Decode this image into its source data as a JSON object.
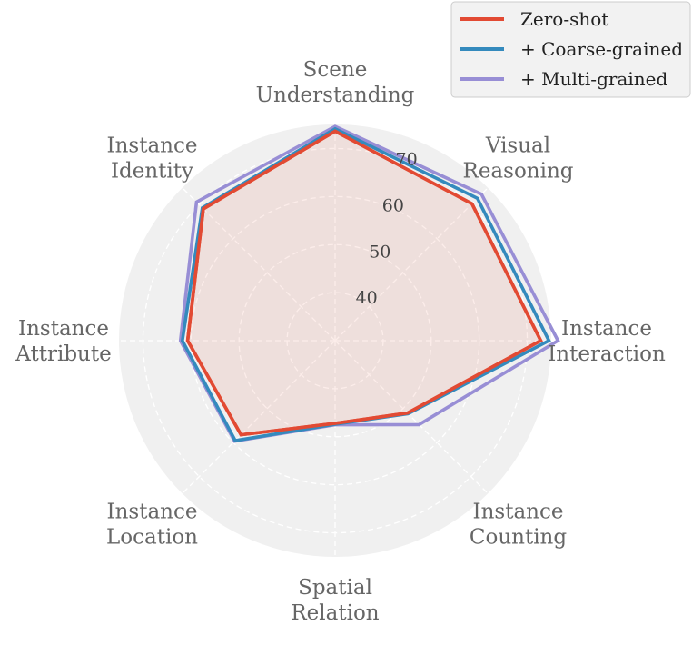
{
  "chart_data": {
    "type": "radar",
    "title": "",
    "categories": [
      "Scene Understanding",
      "Visual Reasoning",
      "Instance Interaction",
      "Instance Counting",
      "Spatial Relation",
      "Instance Location",
      "Instance Attribute",
      "Instance Identity"
    ],
    "radial_ticks": [
      40,
      50,
      60,
      70
    ],
    "radial_range": [
      30,
      75
    ],
    "grid": true,
    "legend_position": "top-right",
    "series": [
      {
        "name": "Zero-shot",
        "color": "#e24a33",
        "values": [
          73.6,
          70.3,
          72.8,
          51.3,
          47.2,
          57.7,
          60.7,
          68.8
        ],
        "fill": true
      },
      {
        "name": "+ Coarse-grained",
        "color": "#348abd",
        "values": [
          74.1,
          71.9,
          74.5,
          51.5,
          47.4,
          59.4,
          61.8,
          69.1
        ],
        "fill": false
      },
      {
        "name": "+ Multi-grained",
        "color": "#988ed5",
        "values": [
          74.6,
          73.1,
          76.4,
          54.7,
          47.5,
          59.6,
          62.2,
          70.8
        ],
        "fill": false
      }
    ]
  }
}
